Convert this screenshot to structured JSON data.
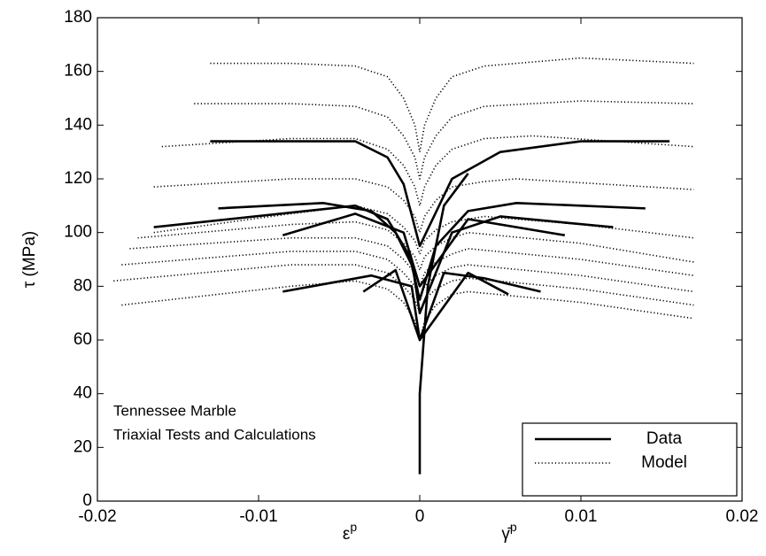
{
  "chart_data": {
    "type": "line",
    "ylabel": "τ (MPa)",
    "xlabels": [
      {
        "base": "ε",
        "sup": "p"
      },
      {
        "base": "γ̄",
        "sup": "p"
      }
    ],
    "annotations": [
      "Tennessee Marble",
      "Triaxial Tests and Calculations"
    ],
    "xlim": [
      -0.02,
      0.02
    ],
    "ylim": [
      0,
      180
    ],
    "xticks": [
      -0.02,
      -0.01,
      0,
      0.01,
      0.02
    ],
    "yticks": [
      0,
      20,
      40,
      60,
      80,
      100,
      120,
      140,
      160,
      180
    ],
    "legend_position": "lower right",
    "color": "#000000",
    "legend": [
      {
        "name": "Data",
        "style": "solid"
      },
      {
        "name": "Model",
        "style": "dotted"
      }
    ],
    "series": [
      {
        "style": "dotted",
        "x": [
          -0.013,
          -0.008,
          -0.004,
          -0.002,
          -0.001,
          -0.0003,
          0,
          0.0003,
          0.001,
          0.002,
          0.004,
          0.01,
          0.017
        ],
        "y": [
          163,
          163,
          162,
          158,
          150,
          140,
          130,
          140,
          150,
          158,
          162,
          165,
          163
        ]
      },
      {
        "style": "dotted",
        "x": [
          -0.014,
          -0.008,
          -0.004,
          -0.002,
          -0.001,
          -0.0003,
          0,
          0.0003,
          0.001,
          0.002,
          0.004,
          0.01,
          0.017
        ],
        "y": [
          148,
          148,
          147,
          143,
          136,
          128,
          120,
          128,
          136,
          143,
          147,
          149,
          148
        ]
      },
      {
        "style": "dotted",
        "x": [
          -0.016,
          -0.008,
          -0.004,
          -0.002,
          -0.001,
          -0.0003,
          0,
          0.0003,
          0.001,
          0.002,
          0.004,
          0.007,
          0.017
        ],
        "y": [
          132,
          135,
          135,
          131,
          125,
          117,
          110,
          117,
          125,
          131,
          135,
          136,
          132
        ]
      },
      {
        "style": "dotted",
        "x": [
          -0.0165,
          -0.008,
          -0.004,
          -0.002,
          -0.001,
          -0.0003,
          0,
          0.0003,
          0.001,
          0.002,
          0.004,
          0.006,
          0.017
        ],
        "y": [
          117,
          120,
          120,
          117,
          112,
          106,
          100,
          106,
          112,
          117,
          119,
          120,
          116
        ]
      },
      {
        "style": "dotted",
        "x": [
          -0.0165,
          -0.008,
          -0.004,
          -0.002,
          -0.001,
          -0.0003,
          0,
          0.0003,
          0.001,
          0.002,
          0.004,
          0.01,
          0.017
        ],
        "y": [
          100,
          107,
          110,
          107,
          102,
          97,
          92,
          97,
          101,
          104,
          106,
          103,
          98
        ]
      },
      {
        "style": "dotted",
        "x": [
          -0.0175,
          -0.008,
          -0.004,
          -0.002,
          -0.001,
          -0.0003,
          0,
          0.0003,
          0.001,
          0.002,
          0.003,
          0.01,
          0.017
        ],
        "y": [
          98,
          103,
          104,
          101,
          96,
          91,
          86,
          91,
          95,
          98,
          100,
          96,
          89
        ]
      },
      {
        "style": "dotted",
        "x": [
          -0.018,
          -0.008,
          -0.004,
          -0.002,
          -0.001,
          -0.0003,
          0,
          0.0003,
          0.001,
          0.002,
          0.003,
          0.01,
          0.017
        ],
        "y": [
          94,
          98,
          98,
          95,
          90,
          85,
          80,
          85,
          89,
          92,
          94,
          90,
          84
        ]
      },
      {
        "style": "dotted",
        "x": [
          -0.0185,
          -0.008,
          -0.004,
          -0.002,
          -0.001,
          -0.0003,
          0,
          0.0003,
          0.001,
          0.002,
          0.003,
          0.01,
          0.017
        ],
        "y": [
          88,
          93,
          93,
          90,
          85,
          80,
          75,
          80,
          84,
          87,
          88,
          84,
          78
        ]
      },
      {
        "style": "dotted",
        "x": [
          -0.019,
          -0.008,
          -0.004,
          -0.002,
          -0.001,
          -0.0003,
          0,
          0.0003,
          0.001,
          0.002,
          0.003,
          0.01,
          0.017
        ],
        "y": [
          82,
          88,
          88,
          85,
          80,
          75,
          70,
          75,
          79,
          82,
          83,
          79,
          73
        ]
      },
      {
        "style": "dotted",
        "x": [
          -0.0185,
          -0.008,
          -0.004,
          -0.002,
          -0.001,
          -0.0003,
          0,
          0.0003,
          0.001,
          0.002,
          0.003,
          0.01,
          0.017
        ],
        "y": [
          73,
          80,
          82,
          79,
          74,
          67,
          60,
          67,
          73,
          77,
          78,
          74,
          68
        ]
      },
      {
        "style": "solid",
        "x": [
          -0.013,
          -0.004,
          -0.002,
          -0.001,
          0,
          0.002,
          0.005,
          0.01,
          0.0155
        ],
        "y": [
          134,
          134,
          128,
          118,
          95,
          120,
          130,
          134,
          134
        ]
      },
      {
        "style": "solid",
        "x": [
          -0.0125,
          -0.006,
          -0.003,
          -0.0015,
          -0.0005,
          0,
          0.001,
          0.003,
          0.006,
          0.014
        ],
        "y": [
          109,
          111,
          108,
          100,
          88,
          75,
          95,
          108,
          111,
          109
        ]
      },
      {
        "style": "solid",
        "x": [
          -0.0165,
          -0.004,
          -0.002,
          -0.0005,
          0,
          0.002,
          0.005,
          0.012
        ],
        "y": [
          102,
          110,
          105,
          90,
          70,
          100,
          106,
          102
        ]
      },
      {
        "style": "solid",
        "x": [
          -0.0085,
          -0.004,
          -0.001,
          0,
          0.003,
          0.009
        ],
        "y": [
          99,
          107,
          100,
          80,
          105,
          99
        ]
      },
      {
        "style": "solid",
        "x": [
          -0.0085,
          -0.003,
          -0.0005,
          0,
          0.0015,
          0.004,
          0.0075
        ],
        "y": [
          78,
          84,
          80,
          60,
          85,
          83,
          78
        ]
      },
      {
        "style": "solid",
        "x": [
          -0.0035,
          -0.0015,
          0,
          0.003,
          0.0055
        ],
        "y": [
          78,
          86,
          60,
          85,
          77
        ]
      },
      {
        "style": "solid",
        "x": [
          0,
          0,
          0.0005,
          0.0015,
          0.003
        ],
        "y": [
          10,
          40,
          80,
          110,
          122
        ]
      }
    ]
  }
}
